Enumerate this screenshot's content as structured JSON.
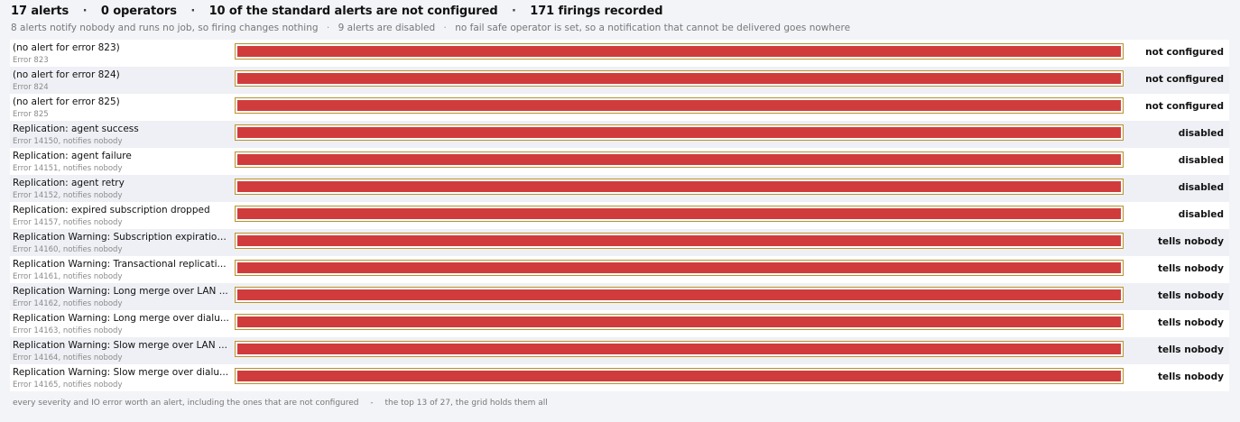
{
  "summary": {
    "alerts": "17 alerts",
    "operators": "0 operators",
    "not_configured": "10 of the standard alerts are not configured",
    "firings": "171 firings recorded",
    "separator": "·"
  },
  "subline": {
    "items": [
      "8 alerts notify nobody and runs no job, so firing changes nothing",
      "9 alerts are disabled",
      "no fail safe operator is set, so a notification that cannot be delivered goes nowhere"
    ],
    "separator": "·"
  },
  "colors": {
    "bar_fill": "#d03c3c",
    "bar_border": "#b8922a",
    "row_alt": "#eef0f5"
  },
  "rows": [
    {
      "title": "(no alert for error 823)",
      "sub": "Error 823",
      "status": "not configured",
      "fill": 1.0
    },
    {
      "title": "(no alert for error 824)",
      "sub": "Error 824",
      "status": "not configured",
      "fill": 1.0
    },
    {
      "title": "(no alert for error 825)",
      "sub": "Error 825",
      "status": "not configured",
      "fill": 1.0
    },
    {
      "title": "Replication: agent success",
      "sub": "Error 14150, notifies nobody",
      "status": "disabled",
      "fill": 1.0
    },
    {
      "title": "Replication: agent failure",
      "sub": "Error 14151, notifies nobody",
      "status": "disabled",
      "fill": 1.0
    },
    {
      "title": "Replication: agent retry",
      "sub": "Error 14152, notifies nobody",
      "status": "disabled",
      "fill": 1.0
    },
    {
      "title": "Replication: expired subscription dropped",
      "sub": "Error 14157, notifies nobody",
      "status": "disabled",
      "fill": 1.0
    },
    {
      "title": "Replication Warning: Subscription expiration...",
      "sub": "Error 14160, notifies nobody",
      "status": "tells nobody",
      "fill": 1.0
    },
    {
      "title": "Replication Warning: Transactional replicati...",
      "sub": "Error 14161, notifies nobody",
      "status": "tells nobody",
      "fill": 1.0
    },
    {
      "title": "Replication Warning: Long merge over LAN ...",
      "sub": "Error 14162, notifies nobody",
      "status": "tells nobody",
      "fill": 1.0
    },
    {
      "title": "Replication Warning: Long merge over dialu...",
      "sub": "Error 14163, notifies nobody",
      "status": "tells nobody",
      "fill": 1.0
    },
    {
      "title": "Replication Warning: Slow merge over LAN ...",
      "sub": "Error 14164, notifies nobody",
      "status": "tells nobody",
      "fill": 1.0
    },
    {
      "title": "Replication Warning: Slow merge over dialu...",
      "sub": "Error 14165, notifies nobody",
      "status": "tells nobody",
      "fill": 1.0
    }
  ],
  "footer": {
    "left": "every severity and IO error worth an alert, including the ones that are not configured",
    "separator": "-",
    "right": "the top 13 of 27, the grid holds them all"
  }
}
